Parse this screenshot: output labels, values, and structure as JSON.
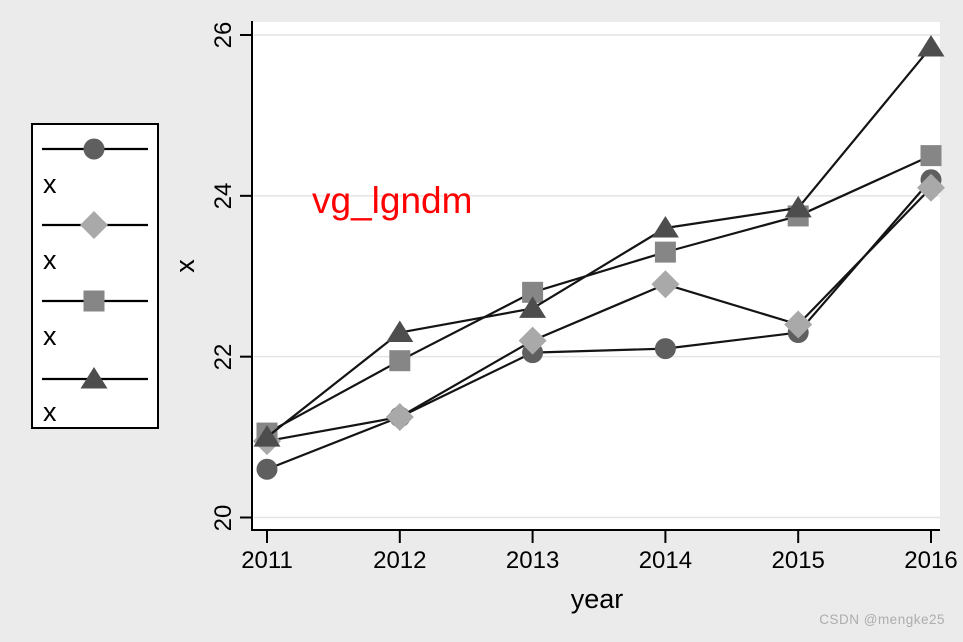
{
  "annotation": {
    "text": "vg_lgndm",
    "color": "#ff0000"
  },
  "watermark": {
    "text": "CSDN @mengke25"
  },
  "axes": {
    "x": {
      "label": "year",
      "tick_labels": [
        "2011",
        "2012",
        "2013",
        "2014",
        "2015",
        "2016"
      ]
    },
    "y": {
      "label": "x",
      "tick_labels": [
        "20",
        "22",
        "24",
        "26"
      ]
    }
  },
  "legend": {
    "entries": [
      {
        "label": "x",
        "marker": "circle",
        "color": "#5f5f5f"
      },
      {
        "label": "x",
        "marker": "diamond",
        "color": "#a9a9a9"
      },
      {
        "label": "x",
        "marker": "square",
        "color": "#868686"
      },
      {
        "label": "x",
        "marker": "triangle",
        "color": "#4d4d4d"
      }
    ]
  },
  "chart_data": {
    "type": "line",
    "x": [
      2011,
      2012,
      2013,
      2014,
      2015,
      2016
    ],
    "series": [
      {
        "name": "x",
        "marker": "circle",
        "color": "#5f5f5f",
        "values": [
          20.6,
          21.25,
          22.05,
          22.1,
          22.3,
          24.2
        ]
      },
      {
        "name": "x",
        "marker": "diamond",
        "color": "#a9a9a9",
        "values": [
          20.95,
          21.25,
          22.2,
          22.9,
          22.4,
          24.1
        ]
      },
      {
        "name": "x",
        "marker": "square",
        "color": "#868686",
        "values": [
          21.05,
          21.95,
          22.8,
          23.3,
          23.75,
          24.5
        ]
      },
      {
        "name": "x",
        "marker": "triangle",
        "color": "#4d4d4d",
        "values": [
          21.0,
          22.3,
          22.6,
          23.6,
          23.85,
          25.85
        ]
      }
    ],
    "xlabel": "year",
    "ylabel": "x",
    "xticks": [
      2011,
      2012,
      2013,
      2014,
      2015,
      2016
    ],
    "yticks": [
      20,
      22,
      24,
      26
    ],
    "ylim": [
      20,
      26
    ],
    "grid": true,
    "legend_position": "outside-left",
    "annotations": [
      {
        "text": "vg_lgndm",
        "color": "#ff0000",
        "x": 2012.6,
        "y": 23.9
      }
    ]
  },
  "colors": {
    "background": "#ebebeb",
    "plot_background": "#ffffff",
    "gridline": "#e4e4e4",
    "axis": "#000000",
    "series_line": "#141414",
    "watermark": "#adadad"
  }
}
